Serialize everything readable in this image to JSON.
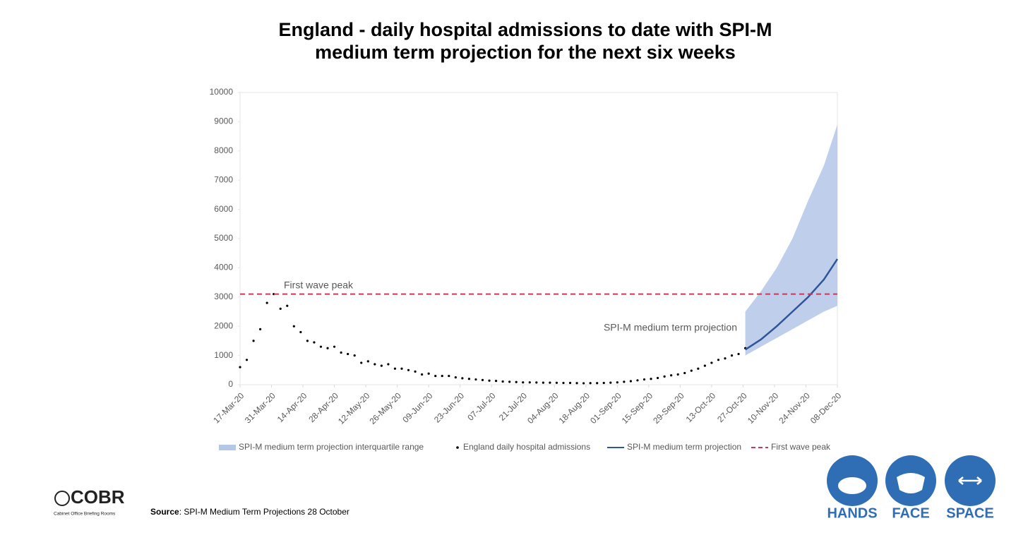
{
  "chart_data": {
    "type": "combo",
    "title": [
      "England - daily hospital admissions to date with SPI-M",
      "medium term projection for the next six weeks"
    ],
    "xlim": [
      "2020-03-17",
      "2020-12-08"
    ],
    "xticks": [
      {
        "value": "2020-03-17",
        "label": "17-Mar-20"
      },
      {
        "value": "2020-03-31",
        "label": "31-Mar-20"
      },
      {
        "value": "2020-04-14",
        "label": "14-Apr-20"
      },
      {
        "value": "2020-04-28",
        "label": "28-Apr-20"
      },
      {
        "value": "2020-05-12",
        "label": "12-May-20"
      },
      {
        "value": "2020-05-26",
        "label": "26-May-20"
      },
      {
        "value": "2020-06-09",
        "label": "09-Jun-20"
      },
      {
        "value": "2020-06-23",
        "label": "23-Jun-20"
      },
      {
        "value": "2020-07-07",
        "label": "07-Jul-20"
      },
      {
        "value": "2020-07-21",
        "label": "21-Jul-20"
      },
      {
        "value": "2020-08-04",
        "label": "04-Aug-20"
      },
      {
        "value": "2020-08-18",
        "label": "18-Aug-20"
      },
      {
        "value": "2020-09-01",
        "label": "01-Sep-20"
      },
      {
        "value": "2020-09-15",
        "label": "15-Sep-20"
      },
      {
        "value": "2020-09-29",
        "label": "29-Sep-20"
      },
      {
        "value": "2020-10-13",
        "label": "13-Oct-20"
      },
      {
        "value": "2020-10-27",
        "label": "27-Oct-20"
      },
      {
        "value": "2020-11-10",
        "label": "10-Nov-20"
      },
      {
        "value": "2020-11-24",
        "label": "24-Nov-20"
      },
      {
        "value": "2020-12-08",
        "label": "08-Dec-20"
      }
    ],
    "ylim": [
      0,
      10000
    ],
    "yticks": [
      0,
      1000,
      2000,
      3000,
      4000,
      5000,
      6000,
      7000,
      8000,
      9000,
      10000
    ],
    "grid": false,
    "legend": "bottom",
    "series": [
      {
        "name": "SPI-M medium term projection interquartile range",
        "type": "band",
        "color": "#b4c7e7",
        "x": [
          "2020-10-28",
          "2020-11-04",
          "2020-11-11",
          "2020-11-18",
          "2020-11-25",
          "2020-12-02",
          "2020-12-08"
        ],
        "lower": [
          1000,
          1300,
          1600,
          1900,
          2200,
          2500,
          2700
        ],
        "upper": [
          2500,
          3200,
          4000,
          5000,
          6300,
          7500,
          8900
        ]
      },
      {
        "name": "England daily hospital admissions",
        "type": "scatter",
        "color": "#000000",
        "x": [
          "2020-03-17",
          "2020-03-20",
          "2020-03-23",
          "2020-03-26",
          "2020-03-29",
          "2020-04-01",
          "2020-04-04",
          "2020-04-07",
          "2020-04-10",
          "2020-04-13",
          "2020-04-16",
          "2020-04-19",
          "2020-04-22",
          "2020-04-25",
          "2020-04-28",
          "2020-05-01",
          "2020-05-04",
          "2020-05-07",
          "2020-05-10",
          "2020-05-13",
          "2020-05-16",
          "2020-05-19",
          "2020-05-22",
          "2020-05-25",
          "2020-05-28",
          "2020-05-31",
          "2020-06-03",
          "2020-06-06",
          "2020-06-09",
          "2020-06-12",
          "2020-06-15",
          "2020-06-18",
          "2020-06-21",
          "2020-06-24",
          "2020-06-27",
          "2020-06-30",
          "2020-07-03",
          "2020-07-06",
          "2020-07-09",
          "2020-07-12",
          "2020-07-15",
          "2020-07-18",
          "2020-07-21",
          "2020-07-24",
          "2020-07-27",
          "2020-07-30",
          "2020-08-02",
          "2020-08-05",
          "2020-08-08",
          "2020-08-11",
          "2020-08-14",
          "2020-08-17",
          "2020-08-20",
          "2020-08-23",
          "2020-08-26",
          "2020-08-29",
          "2020-09-01",
          "2020-09-04",
          "2020-09-07",
          "2020-09-10",
          "2020-09-13",
          "2020-09-16",
          "2020-09-19",
          "2020-09-22",
          "2020-09-25",
          "2020-09-28",
          "2020-10-01",
          "2020-10-04",
          "2020-10-07",
          "2020-10-10",
          "2020-10-13",
          "2020-10-16",
          "2020-10-19",
          "2020-10-22",
          "2020-10-25",
          "2020-10-28"
        ],
        "values": [
          600,
          850,
          1500,
          1900,
          2800,
          3100,
          2600,
          2700,
          2000,
          1800,
          1500,
          1450,
          1300,
          1250,
          1300,
          1100,
          1050,
          1000,
          750,
          800,
          700,
          650,
          700,
          550,
          550,
          500,
          450,
          350,
          380,
          300,
          300,
          300,
          250,
          220,
          200,
          180,
          160,
          140,
          130,
          110,
          100,
          90,
          80,
          80,
          75,
          70,
          70,
          65,
          60,
          60,
          55,
          50,
          55,
          55,
          60,
          70,
          80,
          100,
          120,
          150,
          180,
          200,
          230,
          280,
          320,
          350,
          400,
          480,
          550,
          650,
          750,
          850,
          900,
          1000,
          1050,
          1250
        ]
      },
      {
        "name": "SPI-M medium term projection",
        "type": "line",
        "color": "#2f5597",
        "x": [
          "2020-10-28",
          "2020-11-04",
          "2020-11-11",
          "2020-11-18",
          "2020-11-25",
          "2020-12-02",
          "2020-12-08"
        ],
        "values": [
          1200,
          1550,
          2000,
          2500,
          3000,
          3600,
          4300
        ]
      },
      {
        "name": "First wave peak",
        "type": "hline",
        "color": "#c9395c",
        "value": 3100
      }
    ],
    "annotations": [
      "First wave peak",
      "SPI-M medium term projection"
    ]
  },
  "footer": {
    "logo": "COBR",
    "logo_subtitle": "Cabinet Office Briefing Rooms",
    "source_label": "Source",
    "source_text": ": SPI-M Medium Term Projections 28 October",
    "icons": [
      "HANDS",
      "FACE",
      "SPACE"
    ]
  }
}
